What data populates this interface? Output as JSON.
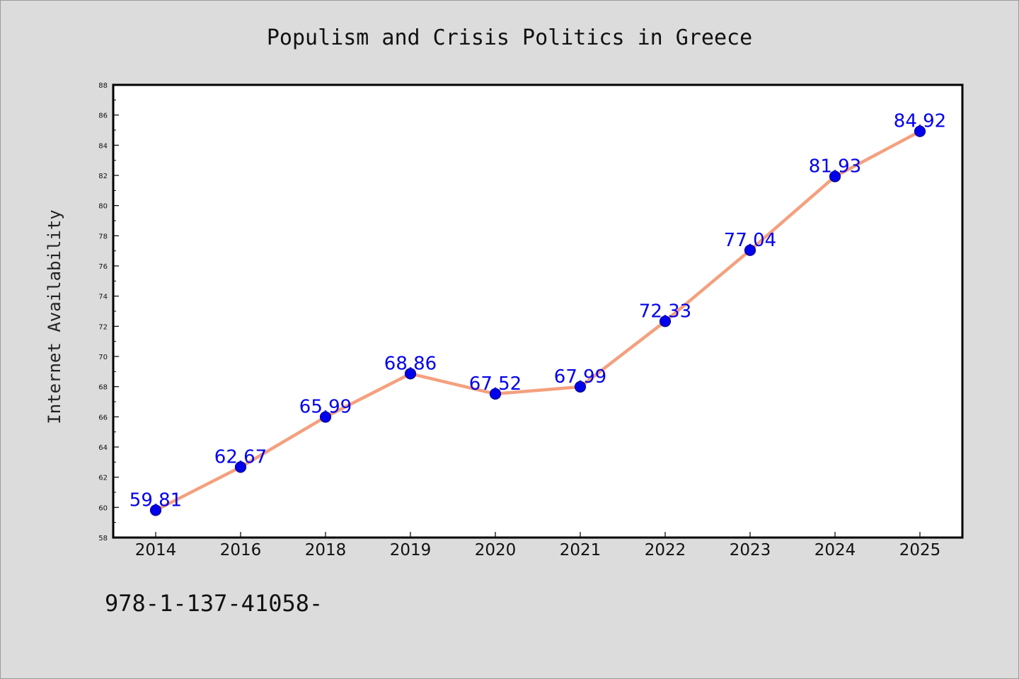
{
  "chart_data": {
    "type": "line",
    "title": "Populism and Crisis Politics in Greece",
    "xlabel": "",
    "ylabel": "Internet Availability",
    "categories": [
      "2014",
      "2016",
      "2018",
      "2019",
      "2020",
      "2021",
      "2022",
      "2023",
      "2024",
      "2025"
    ],
    "values": [
      59.81,
      62.67,
      65.99,
      68.86,
      67.52,
      67.99,
      72.33,
      77.04,
      81.93,
      84.92
    ],
    "data_labels": [
      "59.81",
      "62.67",
      "65.99",
      "68.86",
      "67.52",
      "67.99",
      "72.33",
      "77.04",
      "81.93",
      "84.92"
    ],
    "ylim": [
      58,
      88
    ],
    "y_ticks": [
      "58",
      "60",
      "62",
      "64",
      "66",
      "68",
      "70",
      "72",
      "74",
      "76",
      "78",
      "80",
      "82",
      "84",
      "86",
      "88"
    ],
    "grid": false,
    "legend": "none",
    "colors": {
      "line": "#f4a07e",
      "marker": "#0000ee",
      "marker_edge": "#000080",
      "data_label": "#0000ee",
      "plot_bg": "#ffffff",
      "page_bg": "#dcdcdc"
    }
  },
  "footer_text": "978-1-137-41058-"
}
